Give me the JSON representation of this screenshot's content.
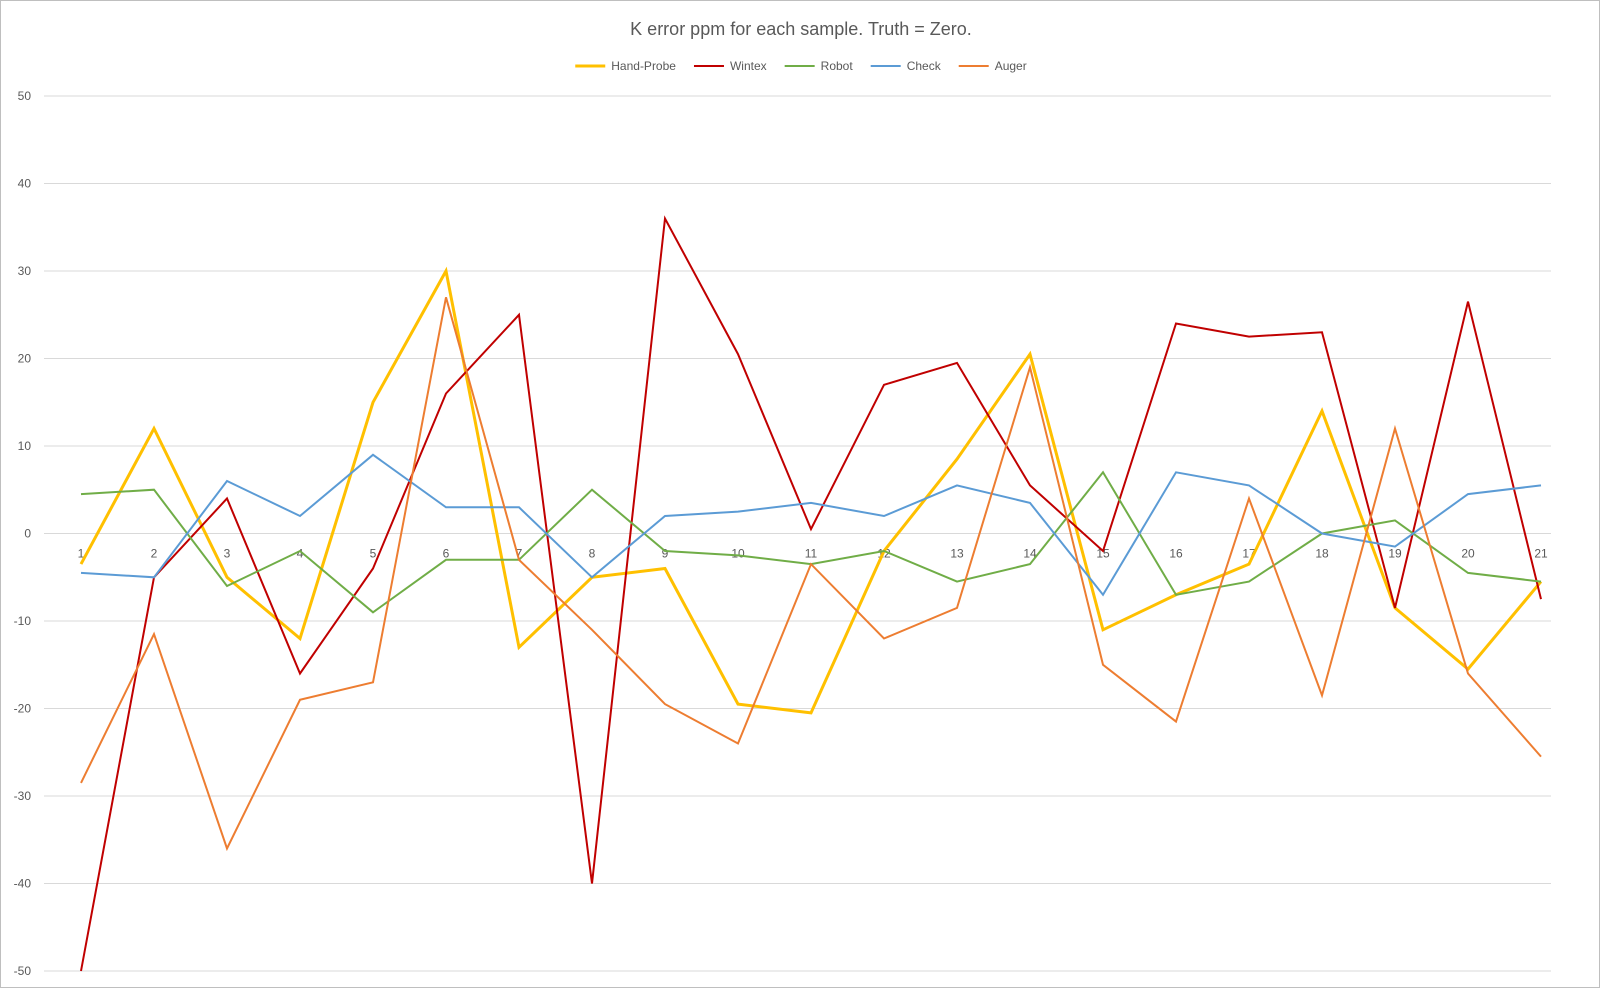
{
  "chart_data": {
    "type": "line",
    "title": "K error ppm for each sample. Truth = Zero.",
    "xlabel": "",
    "ylabel": "",
    "categories": [
      "1",
      "2",
      "3",
      "4",
      "5",
      "6",
      "7",
      "8",
      "9",
      "10",
      "11",
      "12",
      "13",
      "14",
      "15",
      "16",
      "17",
      "18",
      "19",
      "20",
      "21"
    ],
    "ylim": [
      -50,
      50
    ],
    "yticks": [
      50,
      40,
      30,
      20,
      10,
      0,
      -10,
      -20,
      -30,
      -40,
      -50
    ],
    "grid": true,
    "legend_position": "top",
    "series": [
      {
        "name": "Hand-Probe",
        "color": "#ffc000",
        "width": 3,
        "values": [
          -3.5,
          12,
          -5,
          -12,
          15,
          30,
          -13,
          -5,
          -4,
          -19.5,
          -20.5,
          -2,
          8.5,
          20.5,
          -11,
          -7,
          -3.5,
          14,
          -8.5,
          -15.5,
          -5.5
        ]
      },
      {
        "name": "Wintex",
        "color": "#c00000",
        "width": 2,
        "values": [
          -50,
          -5,
          4,
          -16,
          -4,
          16,
          25,
          -40,
          36,
          20.5,
          0.5,
          17,
          19.5,
          5.5,
          -2,
          24,
          22.5,
          23,
          -8.5,
          26.5,
          -7.5
        ]
      },
      {
        "name": "Robot",
        "color": "#70ad47",
        "width": 2,
        "values": [
          4.5,
          5,
          -6,
          -2,
          -9,
          -3,
          -3,
          5,
          -2,
          -2.5,
          -3.5,
          -2,
          -5.5,
          -3.5,
          7,
          -7,
          -5.5,
          0,
          1.5,
          -4.5,
          -5.5
        ]
      },
      {
        "name": "Check",
        "color": "#5b9bd5",
        "width": 2,
        "values": [
          -4.5,
          -5,
          6,
          2,
          9,
          3,
          3,
          -5,
          2,
          2.5,
          3.5,
          2,
          5.5,
          3.5,
          -7,
          7,
          5.5,
          0,
          -1.5,
          4.5,
          5.5
        ]
      },
      {
        "name": "Auger",
        "color": "#ed7d31",
        "width": 2,
        "values": [
          -28.5,
          -11.5,
          -36,
          -19,
          -17,
          27,
          -3,
          -11,
          -19.5,
          -24,
          -3.5,
          -12,
          -8.5,
          19,
          -15,
          -21.5,
          4,
          -18.5,
          12,
          -16,
          -25.5
        ]
      }
    ]
  }
}
